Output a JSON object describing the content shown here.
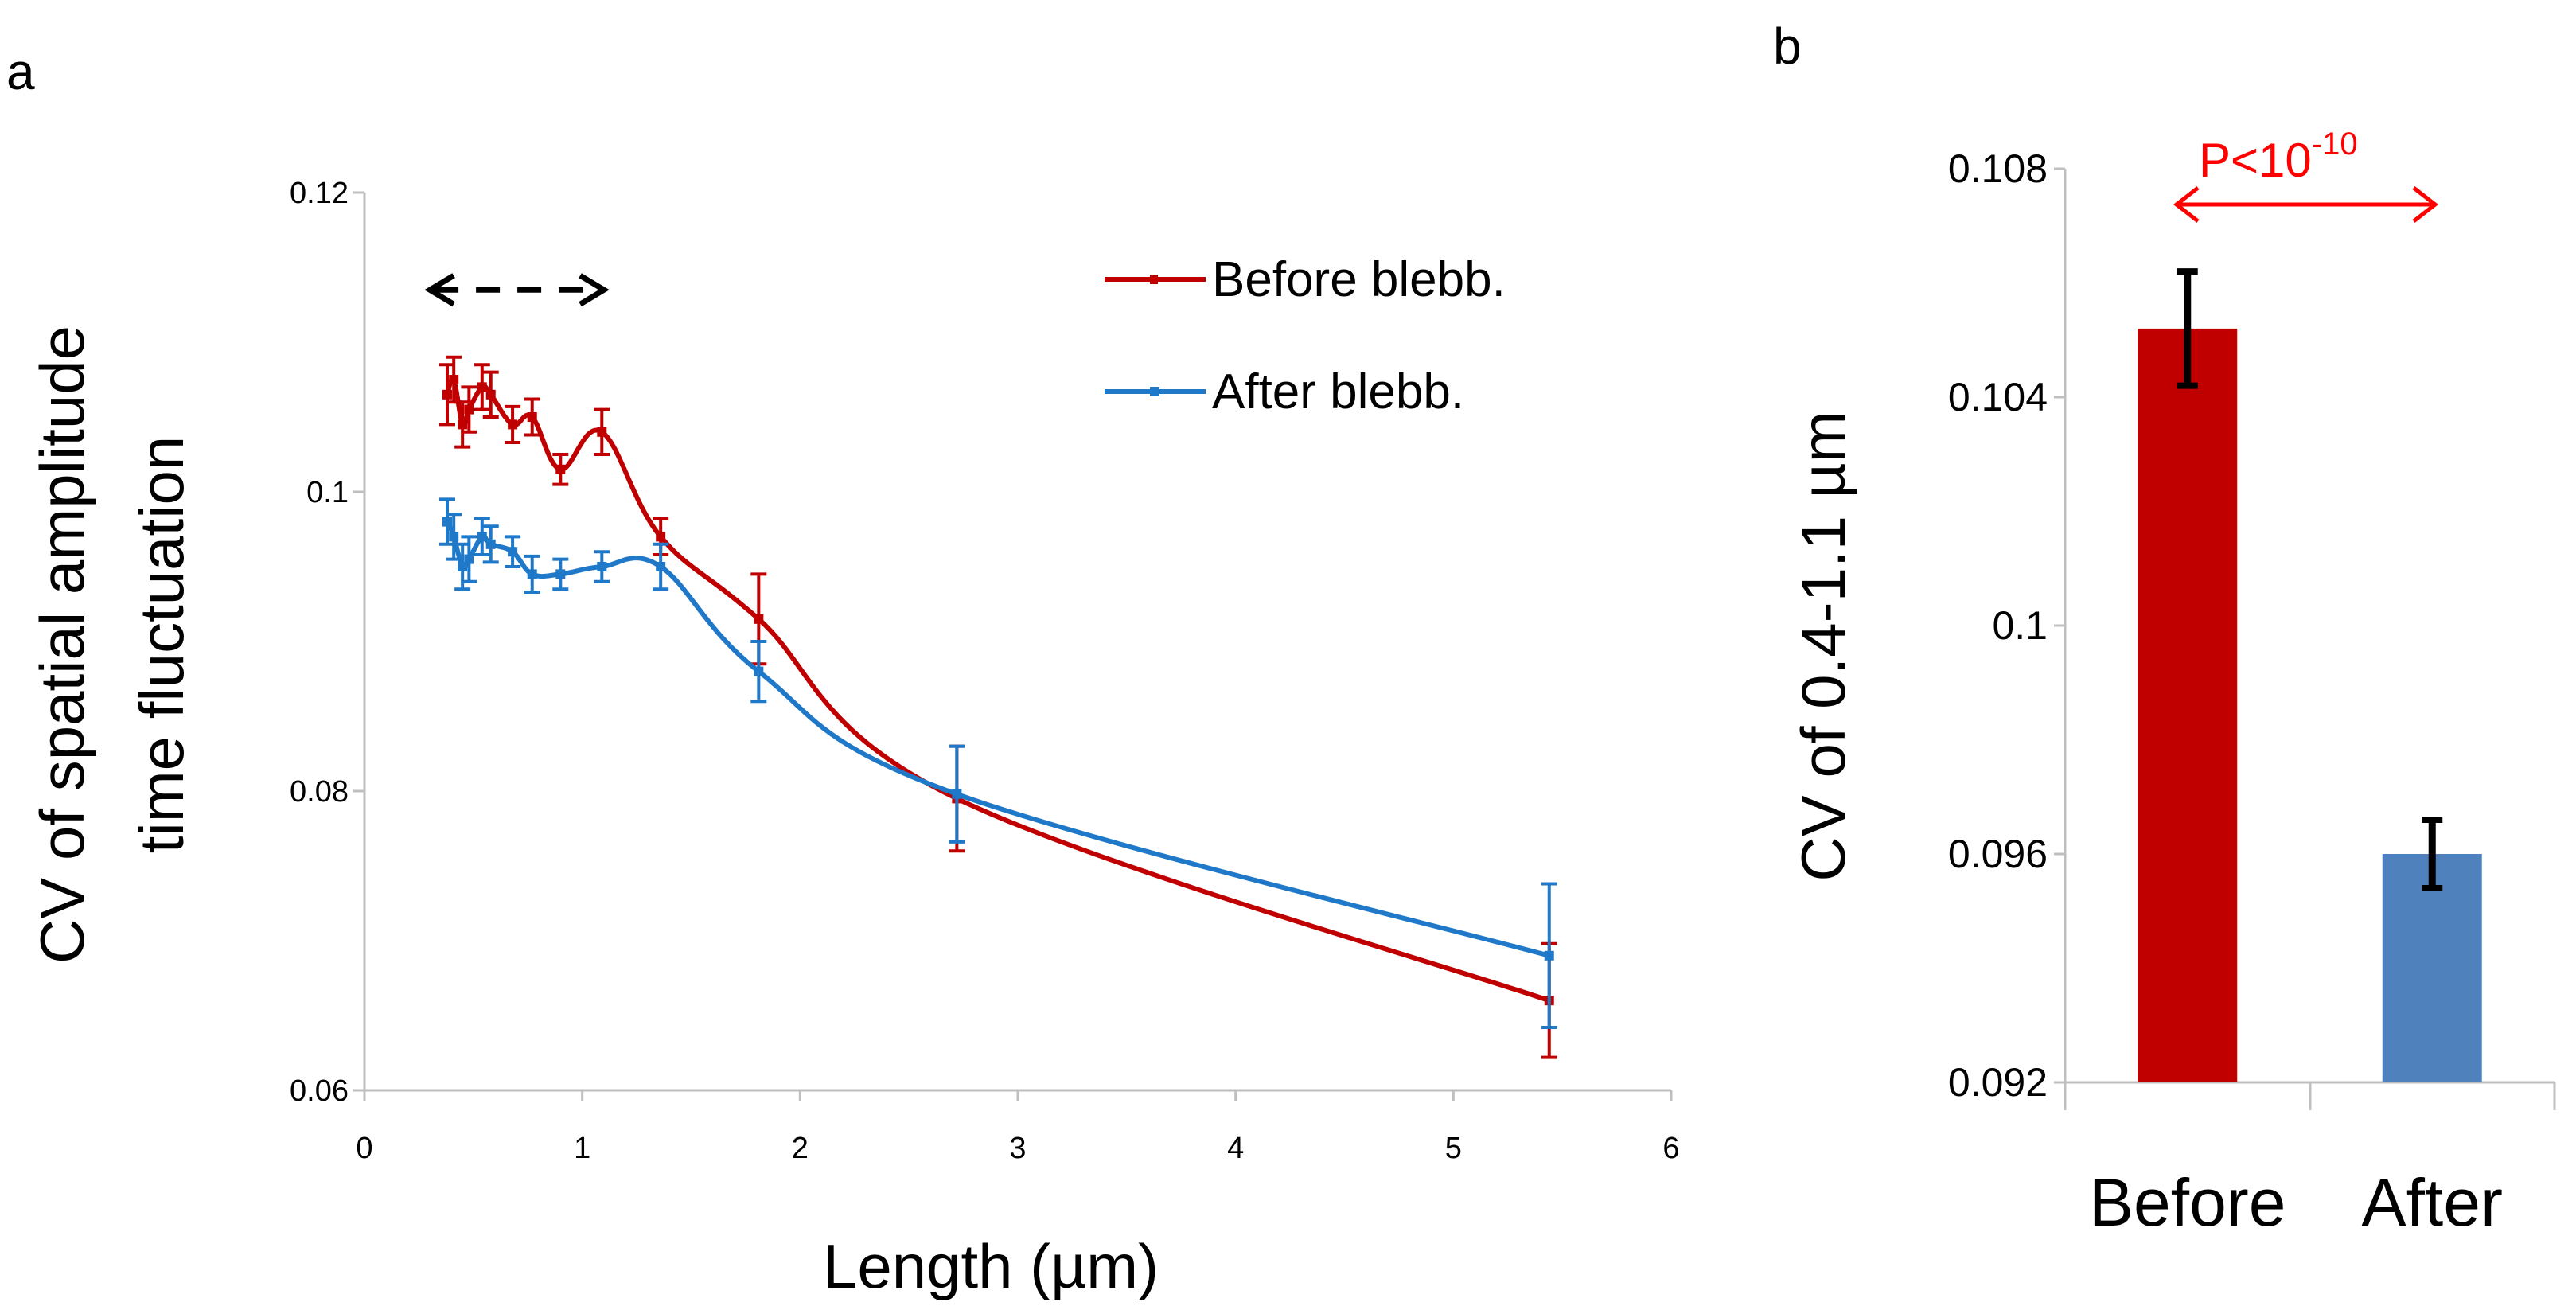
{
  "colors": {
    "before": "#c00000",
    "after": "#1f78c8",
    "after_bar": "#4f81bd",
    "p_annot": "#ff0000",
    "axis": "#c0c0c0"
  },
  "chart_data": [
    {
      "panel": "a",
      "type": "line",
      "title": "",
      "xlabel": "Length (µm)",
      "ylabel": [
        "CV of spatial amplitude",
        "time fluctuation"
      ],
      "xlim": [
        0,
        6
      ],
      "ylim": [
        0.06,
        0.12
      ],
      "xticks": [
        "0",
        "1",
        "2",
        "3",
        "4",
        "5",
        "6"
      ],
      "yticks": [
        "0.06",
        "0.08",
        "0.1",
        "0.12"
      ],
      "grid": false,
      "legend": "top-right",
      "series": [
        {
          "name": "Before blebb.",
          "color": "before",
          "points": [
            {
              "x": 0.38,
              "y": 0.1065,
              "err": 0.002
            },
            {
              "x": 0.41,
              "y": 0.1075,
              "err": 0.0015
            },
            {
              "x": 0.45,
              "y": 0.1045,
              "err": 0.0015
            },
            {
              "x": 0.48,
              "y": 0.1055,
              "err": 0.0015
            },
            {
              "x": 0.54,
              "y": 0.107,
              "err": 0.0015
            },
            {
              "x": 0.58,
              "y": 0.1065,
              "err": 0.0015
            },
            {
              "x": 0.68,
              "y": 0.1045,
              "err": 0.0012
            },
            {
              "x": 0.77,
              "y": 0.105,
              "err": 0.0012
            },
            {
              "x": 0.9,
              "y": 0.1015,
              "err": 0.001
            },
            {
              "x": 1.09,
              "y": 0.104,
              "err": 0.0015
            },
            {
              "x": 1.36,
              "y": 0.097,
              "err": 0.0012
            },
            {
              "x": 1.81,
              "y": 0.0915,
              "err": 0.003
            },
            {
              "x": 2.72,
              "y": 0.0795,
              "err": 0.0035
            },
            {
              "x": 5.44,
              "y": 0.066,
              "err": 0.0038
            }
          ]
        },
        {
          "name": "After blebb.",
          "color": "after",
          "points": [
            {
              "x": 0.38,
              "y": 0.098,
              "err": 0.0015
            },
            {
              "x": 0.41,
              "y": 0.097,
              "err": 0.0015
            },
            {
              "x": 0.45,
              "y": 0.095,
              "err": 0.0015
            },
            {
              "x": 0.48,
              "y": 0.0955,
              "err": 0.0015
            },
            {
              "x": 0.54,
              "y": 0.097,
              "err": 0.0012
            },
            {
              "x": 0.58,
              "y": 0.0965,
              "err": 0.0012
            },
            {
              "x": 0.68,
              "y": 0.096,
              "err": 0.001
            },
            {
              "x": 0.77,
              "y": 0.0945,
              "err": 0.0012
            },
            {
              "x": 0.9,
              "y": 0.0945,
              "err": 0.001
            },
            {
              "x": 1.09,
              "y": 0.095,
              "err": 0.001
            },
            {
              "x": 1.36,
              "y": 0.095,
              "err": 0.0015
            },
            {
              "x": 1.81,
              "y": 0.088,
              "err": 0.002
            },
            {
              "x": 2.72,
              "y": 0.0798,
              "err": 0.0032
            },
            {
              "x": 5.44,
              "y": 0.069,
              "err": 0.0048
            }
          ]
        }
      ],
      "annotations": [
        {
          "type": "double-arrow-dashed",
          "x_from": 0.3,
          "x_to": 1.1,
          "y": 0.1135,
          "color": "#000000"
        }
      ]
    },
    {
      "panel": "b",
      "type": "bar",
      "title": "",
      "xlabel": "",
      "ylabel": "CV of 0.4-1.1 µm",
      "categories": [
        "Before",
        "After"
      ],
      "values": [
        0.1052,
        0.096
      ],
      "errors": [
        0.001,
        0.0006
      ],
      "bar_colors": [
        "before",
        "after_bar"
      ],
      "ylim": [
        0.092,
        0.108
      ],
      "yticks": [
        "0.092",
        "0.096",
        "0.1",
        "0.104",
        "0.108"
      ],
      "grid": false,
      "annotations": [
        {
          "type": "significance-arrow",
          "label": "P<10",
          "superscript": "-10",
          "color": "p_annot"
        }
      ]
    }
  ]
}
